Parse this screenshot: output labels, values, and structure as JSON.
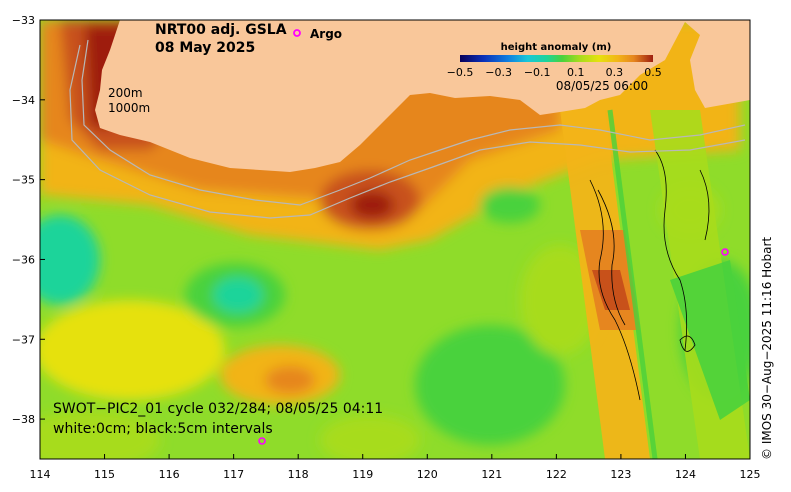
{
  "title": "NRT00 adj. GSLA",
  "date": "08 May 2025",
  "legend": {
    "argo": "Argo"
  },
  "colorbar": {
    "title": "height anomaly (m)",
    "ticks": [
      "−0.5",
      "−0.3",
      "−0.1",
      "0.1",
      "0.3",
      "0.5"
    ],
    "timestamp": "08/05/25 06:00",
    "colors": [
      "#08005a",
      "#0a2fb8",
      "#0f7fe0",
      "#19c7d8",
      "#1ed49a",
      "#4ad23c",
      "#a7dc1c",
      "#e6e110",
      "#f2b418",
      "#e6861f",
      "#c8511a",
      "#9e1f10"
    ]
  },
  "contour_labels": [
    "200m",
    "1000m"
  ],
  "swot": {
    "line1": "SWOT−PIC2_01 cycle 032/284; 08/05/25 04:11",
    "line2": "white:0cm; black:5cm intervals"
  },
  "credit": "© IMOS 30−Aug−2025 11:16 Hobart",
  "axes": {
    "x_ticks": [
      "114",
      "115",
      "116",
      "117",
      "118",
      "119",
      "120",
      "121",
      "122",
      "123",
      "124",
      "125"
    ],
    "y_ticks": [
      "−33",
      "−34",
      "−35",
      "−36",
      "−37",
      "−38"
    ],
    "lon_range": [
      114,
      125
    ],
    "lat_range": [
      -38.5,
      -33
    ]
  },
  "colors": {
    "land": "#f9c79a",
    "argo": "#ff00ff",
    "ocean_base": "#8fdc2a"
  }
}
